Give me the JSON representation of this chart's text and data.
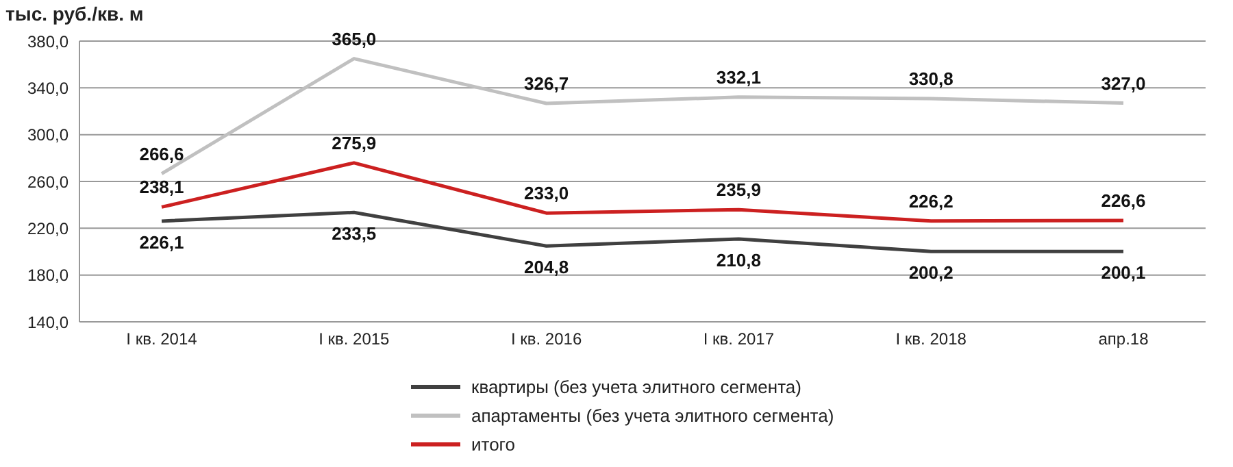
{
  "chart_data": {
    "type": "line",
    "ylabel": "тыс. руб./кв. м",
    "categories": [
      "I кв. 2014",
      "I кв. 2015",
      "I кв. 2016",
      "I кв. 2017",
      "I кв. 2018",
      "апр.18"
    ],
    "series": [
      {
        "name": "квартиры (без учета элитного сегмента)",
        "color": "#404040",
        "values": [
          226.1,
          233.5,
          204.8,
          210.8,
          200.2,
          200.1
        ],
        "value_labels": [
          "226,1",
          "233,5",
          "204,8",
          "210,8",
          "200,2",
          "200,1"
        ]
      },
      {
        "name": "апартаменты (без учета элитного сегмента)",
        "color": "#c0c0c0",
        "values": [
          266.6,
          365.0,
          326.7,
          332.1,
          330.8,
          327.0
        ],
        "value_labels": [
          "266,6",
          "365,0",
          "326,7",
          "332,1",
          "330,8",
          "327,0"
        ]
      },
      {
        "name": "итого",
        "color": "#cc2020",
        "values": [
          238.1,
          275.9,
          233.0,
          235.9,
          226.2,
          226.6
        ],
        "value_labels": [
          "238,1",
          "275,9",
          "233,0",
          "235,9",
          "226,2",
          "226,6"
        ]
      }
    ],
    "ylim": [
      140,
      380
    ],
    "yticks": [
      {
        "value": 140,
        "label": "140,0"
      },
      {
        "value": 180,
        "label": "180,0"
      },
      {
        "value": 220,
        "label": "220,0"
      },
      {
        "value": 260,
        "label": "260,0"
      },
      {
        "value": 300,
        "label": "300,0"
      },
      {
        "value": 340,
        "label": "340,0"
      },
      {
        "value": 380,
        "label": "380,0"
      }
    ],
    "grid": "y",
    "legend": "bottom",
    "marker": "none",
    "line_style": "solid"
  }
}
